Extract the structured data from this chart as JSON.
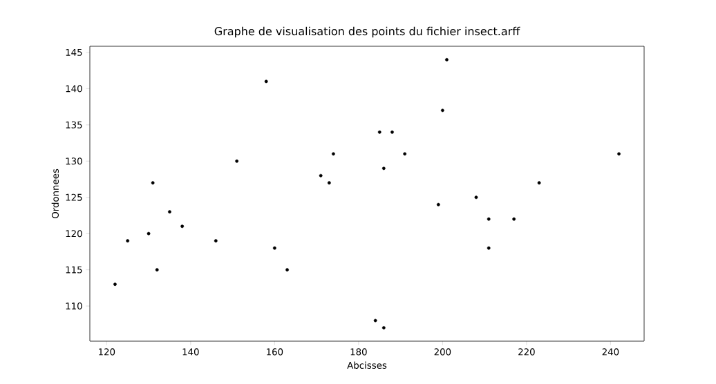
{
  "chart_data": {
    "type": "scatter",
    "title": "Graphe de visualisation des points du fichier insect.arff",
    "xlabel": "Abcisses",
    "ylabel": "Ordonnees",
    "x": [
      122,
      125,
      130,
      131,
      132,
      135,
      138,
      146,
      151,
      158,
      160,
      163,
      171,
      173,
      174,
      184,
      185,
      186,
      186,
      188,
      191,
      199,
      200,
      201,
      208,
      211,
      211,
      217,
      223,
      242
    ],
    "values": [
      113,
      119,
      120,
      127,
      115,
      123,
      121,
      119,
      130,
      141,
      118,
      115,
      128,
      127,
      131,
      108,
      134,
      129,
      107,
      134,
      131,
      124,
      137,
      144,
      125,
      122,
      118,
      122,
      127,
      131
    ],
    "color": "#000000",
    "xlim": [
      116,
      248
    ],
    "ylim": [
      105.15,
      145.85
    ],
    "xticks": [
      120,
      140,
      160,
      180,
      200,
      220,
      240
    ],
    "yticks": [
      110,
      115,
      120,
      125,
      130,
      135,
      140,
      145
    ],
    "grid": false
  }
}
